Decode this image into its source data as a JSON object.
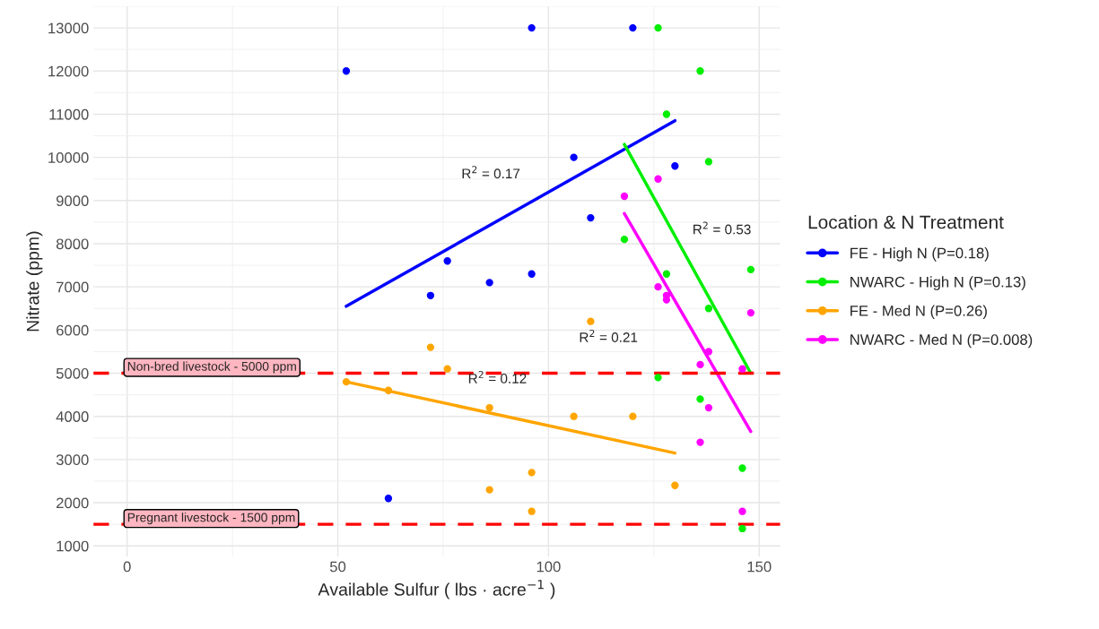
{
  "chart_data": {
    "type": "scatter",
    "xlabel": "Available Sulfur ( lbs · acre$^{−1}$ )",
    "ylabel": "Nitrate (ppm)",
    "legend_title": "Location & N Treatment",
    "legend": "right",
    "grid": true,
    "marker": "circle",
    "xlim": [
      -8,
      155
    ],
    "xticks": [
      0,
      50,
      100,
      150
    ],
    "ylim": [
      750,
      13500
    ],
    "yticks": [
      1000,
      2000,
      3000,
      4000,
      5000,
      6000,
      7000,
      8000,
      9000,
      10000,
      11000,
      12000,
      13000
    ],
    "series": [
      {
        "name": "FE - High N (P=0.18)",
        "color": "#0000ff",
        "x": [
          52,
          96,
          120,
          106,
          130,
          110,
          76,
          72,
          86,
          96,
          62
        ],
        "values": [
          12000,
          13000,
          13000,
          10000,
          9800,
          8600,
          7600,
          6800,
          7100,
          7300,
          2100
        ]
      },
      {
        "name": "NWARC - High N (P=0.13)",
        "color": "#00ee00",
        "x": [
          126,
          136,
          128,
          138,
          118,
          128,
          148,
          138,
          126,
          136,
          146,
          146
        ],
        "values": [
          13000,
          12000,
          11000,
          9900,
          8100,
          7300,
          7400,
          6500,
          4900,
          4400,
          2800,
          1400
        ]
      },
      {
        "name": "FE - Med N (P=0.26)",
        "color": "#ffa500",
        "x": [
          52,
          62,
          72,
          76,
          86,
          86,
          96,
          96,
          106,
          110,
          120,
          130
        ],
        "values": [
          4800,
          4600,
          5600,
          5100,
          4200,
          2300,
          2700,
          1800,
          4000,
          6200,
          4000,
          2400
        ]
      },
      {
        "name": "NWARC - Med N (P=0.008)",
        "color": "#ff00ff",
        "x": [
          118,
          126,
          126,
          128,
          128,
          136,
          138,
          138,
          136,
          146,
          148,
          146
        ],
        "values": [
          9100,
          9500,
          7000,
          6800,
          6700,
          5200,
          5500,
          4200,
          3400,
          5100,
          6400,
          1800
        ]
      },
      {
        "type": "line",
        "marker": "none",
        "color": "#0000ff",
        "x": [
          52,
          130
        ],
        "values": [
          6550,
          10850
        ]
      },
      {
        "type": "line",
        "marker": "none",
        "color": "#00ee00",
        "x": [
          118,
          148
        ],
        "values": [
          10300,
          5000
        ]
      },
      {
        "type": "line",
        "marker": "none",
        "color": "#ffa500",
        "x": [
          52,
          130
        ],
        "values": [
          4800,
          3150
        ]
      },
      {
        "type": "line",
        "marker": "none",
        "color": "#ff00ff",
        "x": [
          118,
          148
        ],
        "values": [
          8700,
          3650
        ]
      }
    ],
    "ref_lines": [
      {
        "axis": "y",
        "value": 5000,
        "label": "Non-bred livestock - 5000 ppm",
        "color": "#ff0000",
        "line_style": "dashed"
      },
      {
        "axis": "y",
        "value": 1500,
        "label": "Pregnant livestock - 1500 ppm",
        "color": "#ff0000",
        "line_style": "dashed"
      }
    ],
    "annotations": [
      "R$^{2}$ = 0.17",
      "R$^{2}$ = 0.53",
      "R$^{2}$ = 0.12",
      "R$^{2}$ = 0.21"
    ]
  }
}
